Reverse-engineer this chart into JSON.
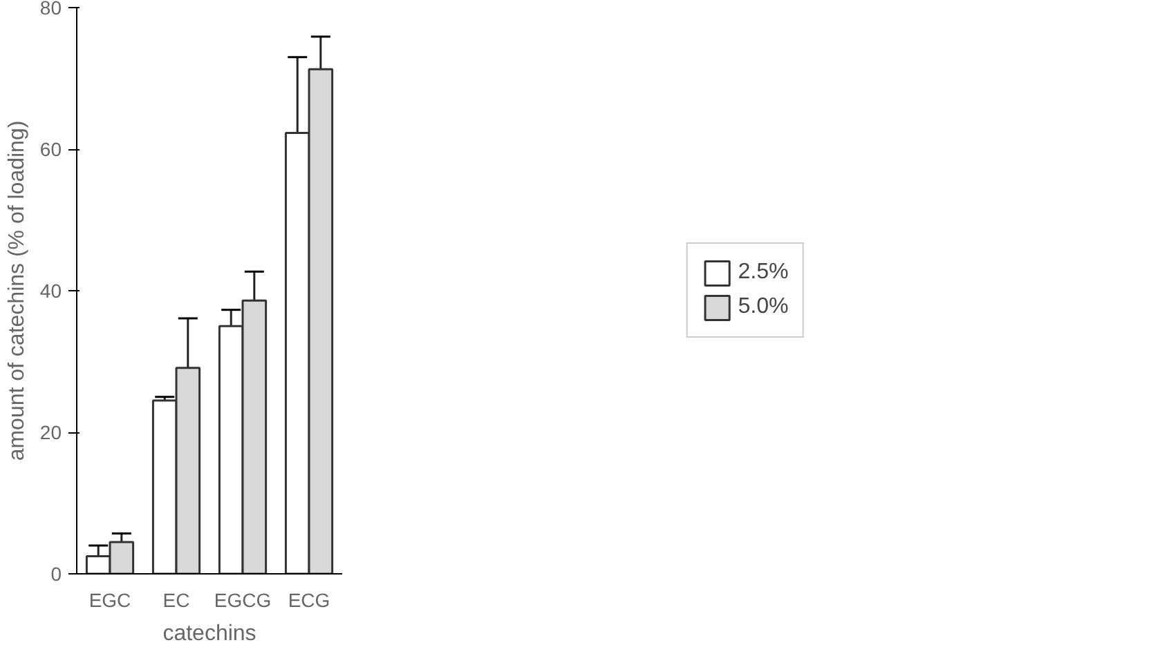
{
  "chart_data": {
    "type": "bar",
    "xlabel": "catechins",
    "ylabel": "amount of catechins (% of loading)",
    "categories": [
      "EGC",
      "EC",
      "EGCG",
      "ECG"
    ],
    "series": [
      {
        "name": "2.5%",
        "color": "#ffffff",
        "values": [
          2.5,
          24.5,
          35,
          62.3
        ],
        "errors": [
          1.5,
          0.5,
          2.3,
          10.7
        ]
      },
      {
        "name": "5.0%",
        "color": "#d9d9d9",
        "values": [
          4.5,
          29.1,
          38.6,
          71.3
        ],
        "errors": [
          1.2,
          7,
          4.1,
          4.6
        ]
      }
    ],
    "ylim": [
      0,
      80
    ],
    "yticks": [
      0,
      20,
      40,
      60,
      80
    ],
    "grid": false,
    "legend": "right"
  }
}
